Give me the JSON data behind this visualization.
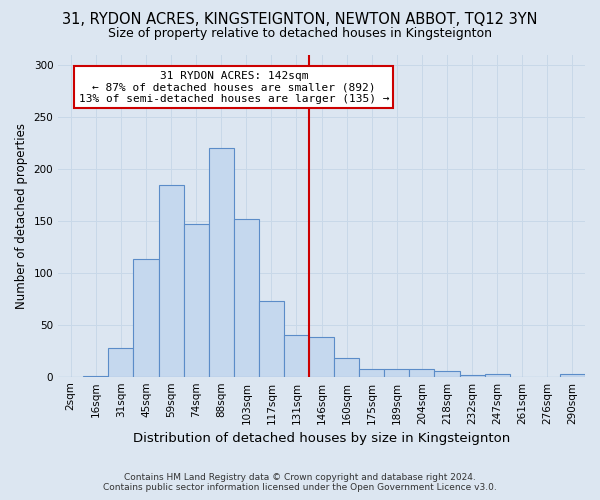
{
  "title": "31, RYDON ACRES, KINGSTEIGNTON, NEWTON ABBOT, TQ12 3YN",
  "subtitle": "Size of property relative to detached houses in Kingsteignton",
  "xlabel": "Distribution of detached houses by size in Kingsteignton",
  "ylabel": "Number of detached properties",
  "footer1": "Contains HM Land Registry data © Crown copyright and database right 2024.",
  "footer2": "Contains public sector information licensed under the Open Government Licence v3.0.",
  "categories": [
    "2sqm",
    "16sqm",
    "31sqm",
    "45sqm",
    "59sqm",
    "74sqm",
    "88sqm",
    "103sqm",
    "117sqm",
    "131sqm",
    "146sqm",
    "160sqm",
    "175sqm",
    "189sqm",
    "204sqm",
    "218sqm",
    "232sqm",
    "247sqm",
    "261sqm",
    "276sqm",
    "290sqm"
  ],
  "bar_heights": [
    0,
    1,
    28,
    113,
    185,
    147,
    220,
    152,
    73,
    40,
    38,
    18,
    7,
    7,
    7,
    5,
    2,
    3,
    0,
    0,
    3
  ],
  "bar_color": "#c5d8ee",
  "bar_edge_color": "#5b8cc8",
  "grid_color": "#c8d8e8",
  "background_color": "#dce6f1",
  "vline_color": "#cc0000",
  "vline_x_index": 10,
  "annotation_text": "31 RYDON ACRES: 142sqm\n← 87% of detached houses are smaller (892)\n13% of semi-detached houses are larger (135) →",
  "annotation_box_color": "#ffffff",
  "annotation_box_edge": "#cc0000",
  "ylim": [
    0,
    310
  ],
  "yticks": [
    0,
    50,
    100,
    150,
    200,
    250,
    300
  ],
  "title_fontsize": 10.5,
  "subtitle_fontsize": 9,
  "ylabel_fontsize": 8.5,
  "xlabel_fontsize": 9.5,
  "tick_fontsize": 7.5,
  "annot_fontsize": 8,
  "footer_fontsize": 6.5
}
